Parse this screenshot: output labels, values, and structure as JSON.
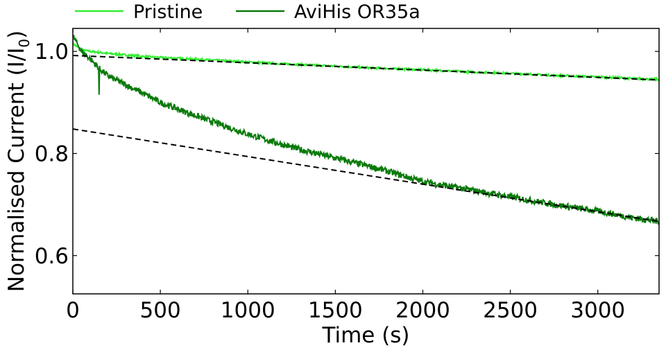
{
  "chart_data": {
    "type": "line",
    "xlabel": "Time (s)",
    "ylabel_main": "Normalised Current (I/I",
    "ylabel_sub": "0",
    "ylabel_end": ")",
    "xlim": [
      0,
      3350
    ],
    "ylim": [
      0.525,
      1.045
    ],
    "xticks": [
      0,
      500,
      1000,
      1500,
      2000,
      2500,
      3000
    ],
    "yticks": [
      0.6,
      0.8,
      1.0
    ],
    "ytick_labels": [
      "0.6",
      "0.8",
      "1.0"
    ],
    "legend_position": "top",
    "series": [
      {
        "name": "Pristine",
        "color": "#33ee33",
        "x": [
          0,
          50,
          100,
          200,
          300,
          400,
          500,
          750,
          1000,
          1250,
          1500,
          1750,
          2000,
          2250,
          2500,
          2750,
          3000,
          3200,
          3350
        ],
        "y": [
          1.015,
          1.003,
          1.0,
          0.996,
          0.993,
          0.99,
          0.988,
          0.984,
          0.979,
          0.975,
          0.971,
          0.967,
          0.964,
          0.96,
          0.957,
          0.953,
          0.95,
          0.947,
          0.945
        ],
        "noise": 0.002
      },
      {
        "name": "AviHis OR35a",
        "color": "#0a7a0a",
        "x": [
          0,
          50,
          100,
          150,
          200,
          300,
          400,
          500,
          600,
          750,
          1000,
          1250,
          1500,
          1750,
          2000,
          2250,
          2500,
          2750,
          3000,
          3200,
          3350
        ],
        "y": [
          1.03,
          1.0,
          0.985,
          0.967,
          0.952,
          0.935,
          0.918,
          0.9,
          0.887,
          0.868,
          0.838,
          0.812,
          0.791,
          0.77,
          0.745,
          0.73,
          0.715,
          0.7,
          0.687,
          0.674,
          0.667
        ],
        "noise": 0.006,
        "spike": {
          "x": 150,
          "y": 0.915
        }
      }
    ],
    "fit_lines": [
      {
        "x": [
          0,
          3350
        ],
        "y": [
          0.992,
          0.944
        ],
        "color": "#000000",
        "dash": true
      },
      {
        "x": [
          0,
          3350
        ],
        "y": [
          0.848,
          0.667
        ],
        "color": "#000000",
        "dash": true
      }
    ]
  }
}
